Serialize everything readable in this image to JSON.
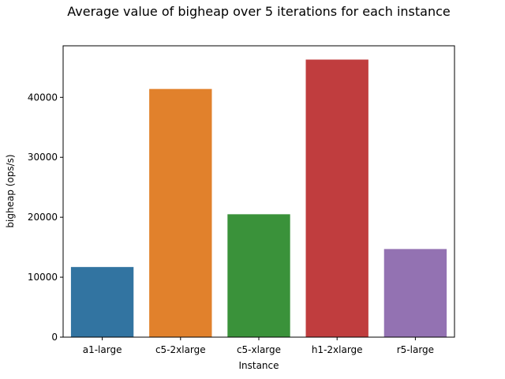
{
  "chart_data": {
    "type": "bar",
    "title": "Average value of bigheap over 5 iterations for each instance",
    "xlabel": "Instance",
    "ylabel": "bigheap (ops/s)",
    "categories": [
      "a1-large",
      "c5-2xlarge",
      "c5-xlarge",
      "h1-2xlarge",
      "r5-large"
    ],
    "values": [
      11700,
      41400,
      20500,
      46300,
      14700
    ],
    "colors": [
      "#3274a1",
      "#e1812c",
      "#3a923a",
      "#c03d3e",
      "#9372b2"
    ],
    "ylim": [
      0,
      48600
    ],
    "yticks": [
      0,
      10000,
      20000,
      30000,
      40000
    ],
    "grid": false,
    "legend": "none"
  }
}
